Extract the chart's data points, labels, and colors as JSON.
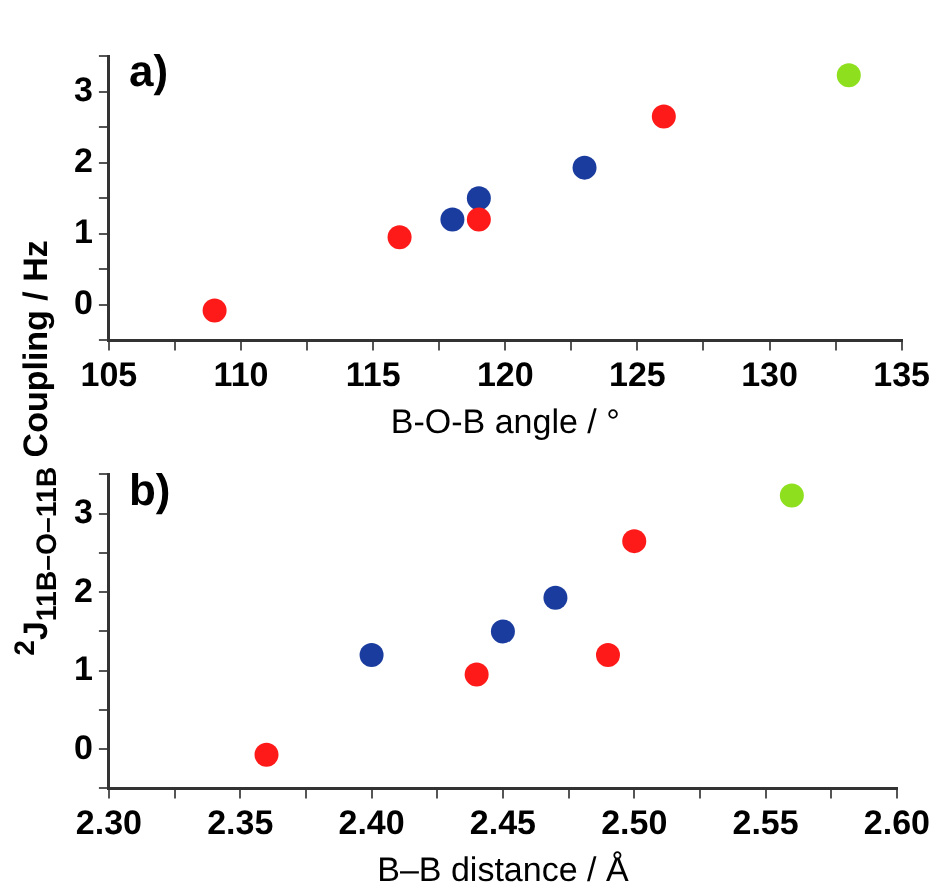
{
  "chart_data": [
    {
      "type": "scatter",
      "title": "a)",
      "xlabel": "B-O-B angle / °",
      "ylabel": "$^{2}$J$_{11B–O–11B}$ Coupling / Hz",
      "xlim": [
        105,
        135
      ],
      "xticks": [
        105,
        {
          "value": 107.5,
          "label": null
        },
        110,
        {
          "value": 112.5,
          "label": null
        },
        115,
        {
          "value": 117.5,
          "label": null
        },
        120,
        {
          "value": 122.5,
          "label": null
        },
        125,
        {
          "value": 127.5,
          "label": null
        },
        130,
        {
          "value": 132.5,
          "label": null
        },
        135
      ],
      "ylim": [
        -0.5,
        3.5
      ],
      "yticks": [
        {
          "value": -0.5,
          "label": null
        },
        0,
        {
          "value": 0.5,
          "label": null
        },
        1,
        {
          "value": 1.5,
          "label": null
        },
        2,
        {
          "value": 2.5,
          "label": null
        },
        3,
        {
          "value": 3.5,
          "label": null
        }
      ],
      "grid": false,
      "legend": false,
      "marker": "circle",
      "series": [
        {
          "color": "#ff1a1a",
          "x": [
            109,
            116,
            119,
            126
          ],
          "values": [
            -0.08,
            0.95,
            1.2,
            2.65
          ]
        },
        {
          "color": "#1a3c9e",
          "x": [
            118,
            119,
            123
          ],
          "values": [
            1.2,
            1.5,
            1.93
          ]
        },
        {
          "color": "#8ee01e",
          "x": [
            133
          ],
          "values": [
            3.23
          ]
        }
      ]
    },
    {
      "type": "scatter",
      "title": "b)",
      "xlabel": "B–B distance / Å",
      "xlim": [
        2.3,
        2.6
      ],
      "xticks": [
        {
          "value": 2.3,
          "label": "2.30"
        },
        {
          "value": 2.325,
          "label": null
        },
        {
          "value": 2.35,
          "label": "2.35"
        },
        {
          "value": 2.375,
          "label": null
        },
        {
          "value": 2.4,
          "label": "2.40"
        },
        {
          "value": 2.425,
          "label": null
        },
        {
          "value": 2.45,
          "label": "2.45"
        },
        {
          "value": 2.475,
          "label": null
        },
        {
          "value": 2.5,
          "label": "2.50"
        },
        {
          "value": 2.525,
          "label": null
        },
        {
          "value": 2.55,
          "label": "2.55"
        },
        {
          "value": 2.575,
          "label": null
        },
        {
          "value": 2.6,
          "label": "2.60"
        }
      ],
      "ylim": [
        -0.5,
        3.5
      ],
      "yticks": [
        {
          "value": -0.5,
          "label": null
        },
        0,
        {
          "value": 0.5,
          "label": null
        },
        1,
        {
          "value": 1.5,
          "label": null
        },
        2,
        {
          "value": 2.5,
          "label": null
        },
        3,
        {
          "value": 3.5,
          "label": null
        }
      ],
      "grid": false,
      "legend": false,
      "marker": "circle",
      "series": [
        {
          "color": "#ff1a1a",
          "x": [
            2.36,
            2.44,
            2.49,
            2.5
          ],
          "values": [
            -0.07,
            0.95,
            1.2,
            2.65
          ]
        },
        {
          "color": "#1a3c9e",
          "x": [
            2.4,
            2.45,
            2.47
          ],
          "values": [
            1.2,
            1.5,
            1.93
          ]
        },
        {
          "color": "#8ee01e",
          "x": [
            2.56
          ],
          "values": [
            3.23
          ]
        }
      ]
    }
  ]
}
